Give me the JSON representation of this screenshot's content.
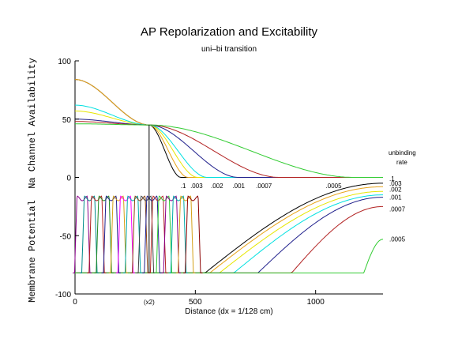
{
  "title": "AP Repolarization and Excitability",
  "subtitle": "uni–bi transition",
  "ylabel": "Membrane Potential  Na Channel Availability",
  "legend_title": [
    "unbinding",
    "rate"
  ],
  "chart_data": {
    "type": "line",
    "title": "AP Repolarization and Excitability",
    "subtitle": "uni–bi transition",
    "xlabel": "Distance (dx = 1/128 cm)",
    "ylabel": "Membrane Potential  Na Channel Availability",
    "xlim": [
      0,
      1280
    ],
    "ylim": [
      -100,
      100
    ],
    "xticks": [
      0,
      500,
      1000
    ],
    "extra_xtick": {
      "label": "(x2)",
      "x": 308
    },
    "yticks": [
      -100,
      -50,
      0,
      50,
      100
    ],
    "legend_placement": "right",
    "legend_title": "unbinding rate",
    "marker_x": 308,
    "availability_series": [
      {
        "name": ".1",
        "color": "#000000",
        "y0": 84,
        "x_zero": 440
      },
      {
        "name": ".003",
        "color": "#e8a317",
        "y0": 84,
        "x_zero": 470
      },
      {
        "name": ".002",
        "color": "#e6e600",
        "y0": 57,
        "x_zero": 510
      },
      {
        "name": ".001",
        "color": "#00e0e0",
        "y0": 62,
        "x_zero": 550
      },
      {
        "name": ".001",
        "color": "#20208c",
        "y0": 50,
        "x_zero": 680
      },
      {
        "name": ".0007",
        "color": "#b22222",
        "y0": 48,
        "x_zero": 850
      },
      {
        "name": ".0005",
        "color": "#33cc33",
        "y0": 46,
        "x_zero": 1160
      }
    ],
    "availability_labels": [
      {
        "text": ".1",
        "x": 450
      },
      {
        "text": ".003",
        "x": 505
      },
      {
        "text": ".002",
        "x": 590
      },
      {
        "text": ".001",
        "x": 680
      },
      {
        "text": ".0007",
        "x": 785
      },
      {
        "text": ".0005",
        "x": 1075
      }
    ],
    "recovery_series": [
      {
        "name": ".1",
        "color": "#000000",
        "x_start": 540,
        "y_end": -5
      },
      {
        "name": ".003",
        "color": "#e8a317",
        "x_start": 560,
        "y_end": -8
      },
      {
        "name": ".002",
        "color": "#e6e600",
        "x_start": 600,
        "y_end": -12
      },
      {
        "name": ".001",
        "color": "#00e0e0",
        "x_start": 660,
        "y_end": -15
      },
      {
        "name": ".001",
        "color": "#20208c",
        "x_start": 760,
        "y_end": -17
      },
      {
        "name": ".0007",
        "color": "#b22222",
        "x_start": 900,
        "y_end": -25
      },
      {
        "name": ".0005",
        "color": "#33cc33",
        "x_start": 1200,
        "y_end": -53
      }
    ],
    "legend_entries": [
      {
        "text": ".1",
        "y": -1
      },
      {
        "text": ".003",
        "y": -5
      },
      {
        "text": ".002",
        "y": -10
      },
      {
        "text": ".001",
        "y": -17
      },
      {
        "text": ".0007",
        "y": -27
      },
      {
        "text": ".0005",
        "y": -53
      }
    ],
    "action_potentials": {
      "baseline": -82,
      "plateau": -18,
      "centers": [
        30,
        60,
        90,
        120,
        150,
        180,
        210,
        240,
        270,
        295,
        320,
        345,
        370,
        400,
        430,
        460,
        490
      ],
      "colors": [
        "#8b008b",
        "#008b8b",
        "#b22222",
        "#228b22",
        "#1e1e8c",
        "#d4a017",
        "#ff00ff",
        "#00aaaa",
        "#8b4513",
        "#444444",
        "#20208c",
        "#b22222",
        "#33cc33",
        "#8b008b",
        "#00aaaa",
        "#d4a017",
        "#8b0000"
      ]
    }
  }
}
